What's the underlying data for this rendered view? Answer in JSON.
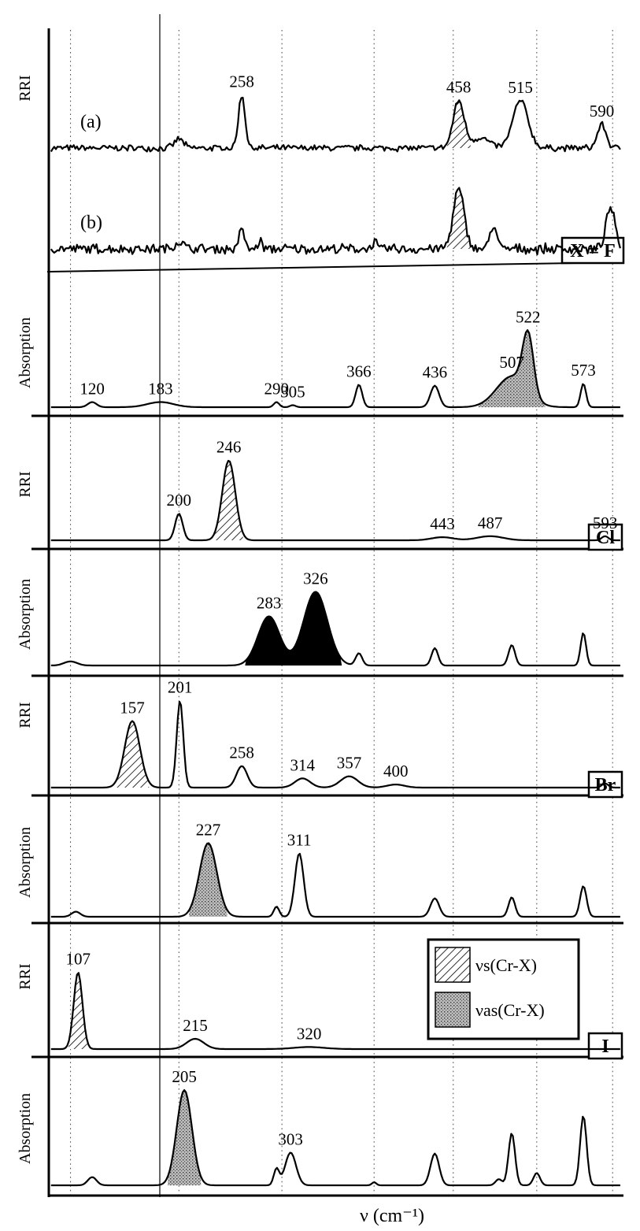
{
  "chart_data": {
    "type": "line",
    "xlabel": "ν (cm⁻¹)",
    "xlim": [
      80,
      610
    ],
    "grid": true,
    "legend": {
      "placement": "lower-right",
      "entries": [
        {
          "label": "νs(Cr-X)",
          "fill": "hatched"
        },
        {
          "label": "νas(Cr-X)",
          "fill": "stippled"
        }
      ]
    },
    "gridlines_x": [
      100,
      200,
      295,
      380,
      453,
      530,
      600
    ],
    "panels": [
      {
        "halide": "X = F",
        "ylabel": "RRI",
        "traces": [
          {
            "tag": "(a)",
            "noise": 0.18,
            "peaks": [
              {
                "x": 200,
                "h": 0.9,
                "w": 4,
                "label": ""
              },
              {
                "x": 258,
                "h": 5.2,
                "w": 3,
                "label": "258"
              },
              {
                "x": 458,
                "h": 4.6,
                "w": 5,
                "label": "458",
                "fill": "hatch"
              },
              {
                "x": 478,
                "h": 1.0,
                "w": 8,
                "label": ""
              },
              {
                "x": 515,
                "h": 4.6,
                "w": 7,
                "label": "515"
              },
              {
                "x": 590,
                "h": 2.3,
                "w": 4,
                "label": "590"
              }
            ]
          },
          {
            "tag": "(b)",
            "noise": 0.28,
            "peaks": [
              {
                "x": 200,
                "h": 0.7,
                "w": 4,
                "label": ""
              },
              {
                "x": 258,
                "h": 2.3,
                "w": 2,
                "label": ""
              },
              {
                "x": 275,
                "h": 0.7,
                "w": 2,
                "label": ""
              },
              {
                "x": 380,
                "h": 0.7,
                "w": 2,
                "label": ""
              },
              {
                "x": 458,
                "h": 5.8,
                "w": 5,
                "label": "",
                "fill": "hatch"
              },
              {
                "x": 490,
                "h": 2.4,
                "w": 3,
                "label": ""
              },
              {
                "x": 598,
                "h": 4.0,
                "w": 4,
                "label": ""
              }
            ]
          }
        ]
      },
      {
        "halide": "",
        "ylabel": "Absorption",
        "traces": [
          {
            "tag": "",
            "noise": 0.0,
            "peaks": [
              {
                "x": 120,
                "h": 0.5,
                "w": 4,
                "label": "120"
              },
              {
                "x": 183,
                "h": 0.5,
                "w": 12,
                "label": "183"
              },
              {
                "x": 290,
                "h": 0.5,
                "w": 2.5,
                "label": "290"
              },
              {
                "x": 305,
                "h": 0.2,
                "w": 2.5,
                "label": "305"
              },
              {
                "x": 366,
                "h": 2.2,
                "w": 3,
                "label": "366"
              },
              {
                "x": 436,
                "h": 2.1,
                "w": 4,
                "label": "436"
              },
              {
                "x": 507,
                "h": 3.0,
                "w": 14,
                "label": "507",
                "fill": "stipple"
              },
              {
                "x": 522,
                "h": 5.8,
                "w": 5,
                "label": "522",
                "fill": "stipple"
              },
              {
                "x": 573,
                "h": 2.3,
                "w": 2.5,
                "label": "573"
              }
            ]
          }
        ]
      },
      {
        "halide": "Cl",
        "ylabel": "RRI",
        "traces": [
          {
            "tag": "",
            "noise": 0.0,
            "peaks": [
              {
                "x": 200,
                "h": 2.6,
                "w": 3.5,
                "label": "200"
              },
              {
                "x": 246,
                "h": 7.8,
                "w": 6,
                "label": "246",
                "fill": "hatch"
              },
              {
                "x": 443,
                "h": 0.3,
                "w": 10,
                "label": "443"
              },
              {
                "x": 487,
                "h": 0.4,
                "w": 12,
                "label": "487"
              },
              {
                "x": 593,
                "h": 0.4,
                "w": 3,
                "label": "593"
              }
            ]
          }
        ]
      },
      {
        "halide": "",
        "ylabel": "Absorption",
        "traces": [
          {
            "tag": "",
            "noise": 0.0,
            "peaks": [
              {
                "x": 100,
                "h": 0.4,
                "w": 6,
                "label": ""
              },
              {
                "x": 283,
                "h": 4.8,
                "w": 10,
                "label": "283",
                "fill": "solid"
              },
              {
                "x": 326,
                "h": 7.2,
                "w": 11,
                "label": "326",
                "fill": "solid"
              },
              {
                "x": 366,
                "h": 1.2,
                "w": 3,
                "label": ""
              },
              {
                "x": 436,
                "h": 1.7,
                "w": 3,
                "label": ""
              },
              {
                "x": 507,
                "h": 2.0,
                "w": 3,
                "label": ""
              },
              {
                "x": 573,
                "h": 3.2,
                "w": 2.5,
                "label": ""
              }
            ]
          }
        ]
      },
      {
        "halide": "Br",
        "ylabel": "RRI",
        "traces": [
          {
            "tag": "",
            "noise": 0.0,
            "peaks": [
              {
                "x": 157,
                "h": 6.5,
                "w": 7,
                "label": "157",
                "fill": "hatch"
              },
              {
                "x": 201,
                "h": 8.5,
                "w": 3,
                "label": "201"
              },
              {
                "x": 258,
                "h": 2.1,
                "w": 5,
                "label": "258"
              },
              {
                "x": 314,
                "h": 0.9,
                "w": 7,
                "label": "314"
              },
              {
                "x": 357,
                "h": 1.1,
                "w": 8,
                "label": "357"
              },
              {
                "x": 400,
                "h": 0.3,
                "w": 8,
                "label": "400"
              },
              {
                "x": 593,
                "h": 0.4,
                "w": 3,
                "label": ""
              }
            ]
          }
        ]
      },
      {
        "halide": "",
        "ylabel": "Absorption",
        "traces": [
          {
            "tag": "",
            "noise": 0.0,
            "peaks": [
              {
                "x": 105,
                "h": 0.5,
                "w": 4,
                "label": ""
              },
              {
                "x": 227,
                "h": 7.2,
                "w": 8,
                "label": "227",
                "fill": "stipple"
              },
              {
                "x": 290,
                "h": 1.0,
                "w": 2.5,
                "label": ""
              },
              {
                "x": 311,
                "h": 6.2,
                "w": 4,
                "label": "311"
              },
              {
                "x": 436,
                "h": 1.8,
                "w": 4,
                "label": ""
              },
              {
                "x": 507,
                "h": 1.9,
                "w": 3,
                "label": ""
              },
              {
                "x": 573,
                "h": 3.0,
                "w": 3,
                "label": ""
              }
            ]
          }
        ]
      },
      {
        "halide": "I",
        "ylabel": "RRI",
        "traces": [
          {
            "tag": "",
            "noise": 0.0,
            "peaks": [
              {
                "x": 107,
                "h": 7.5,
                "w": 4,
                "label": "107",
                "fill": "hatch"
              },
              {
                "x": 215,
                "h": 1.0,
                "w": 8,
                "label": "215"
              },
              {
                "x": 320,
                "h": 0.2,
                "w": 14,
                "label": "320"
              }
            ]
          }
        ]
      },
      {
        "halide": "",
        "ylabel": "Absorption",
        "traces": [
          {
            "tag": "",
            "noise": 0.0,
            "peaks": [
              {
                "x": 120,
                "h": 0.8,
                "w": 4,
                "label": ""
              },
              {
                "x": 205,
                "h": 9.3,
                "w": 7,
                "label": "205",
                "fill": "stipple"
              },
              {
                "x": 290,
                "h": 1.6,
                "w": 2.5,
                "label": ""
              },
              {
                "x": 303,
                "h": 3.2,
                "w": 5,
                "label": "303"
              },
              {
                "x": 380,
                "h": 0.3,
                "w": 2,
                "label": ""
              },
              {
                "x": 436,
                "h": 3.1,
                "w": 4,
                "label": ""
              },
              {
                "x": 495,
                "h": 0.6,
                "w": 3,
                "label": ""
              },
              {
                "x": 507,
                "h": 5.1,
                "w": 3,
                "label": ""
              },
              {
                "x": 530,
                "h": 1.2,
                "w": 3,
                "label": ""
              },
              {
                "x": 573,
                "h": 6.8,
                "w": 3,
                "label": ""
              }
            ]
          }
        ]
      }
    ]
  },
  "colors": {
    "ink": "#000000",
    "grid": "#555555",
    "background": "#ffffff",
    "stipple": "#8a8a8a"
  }
}
